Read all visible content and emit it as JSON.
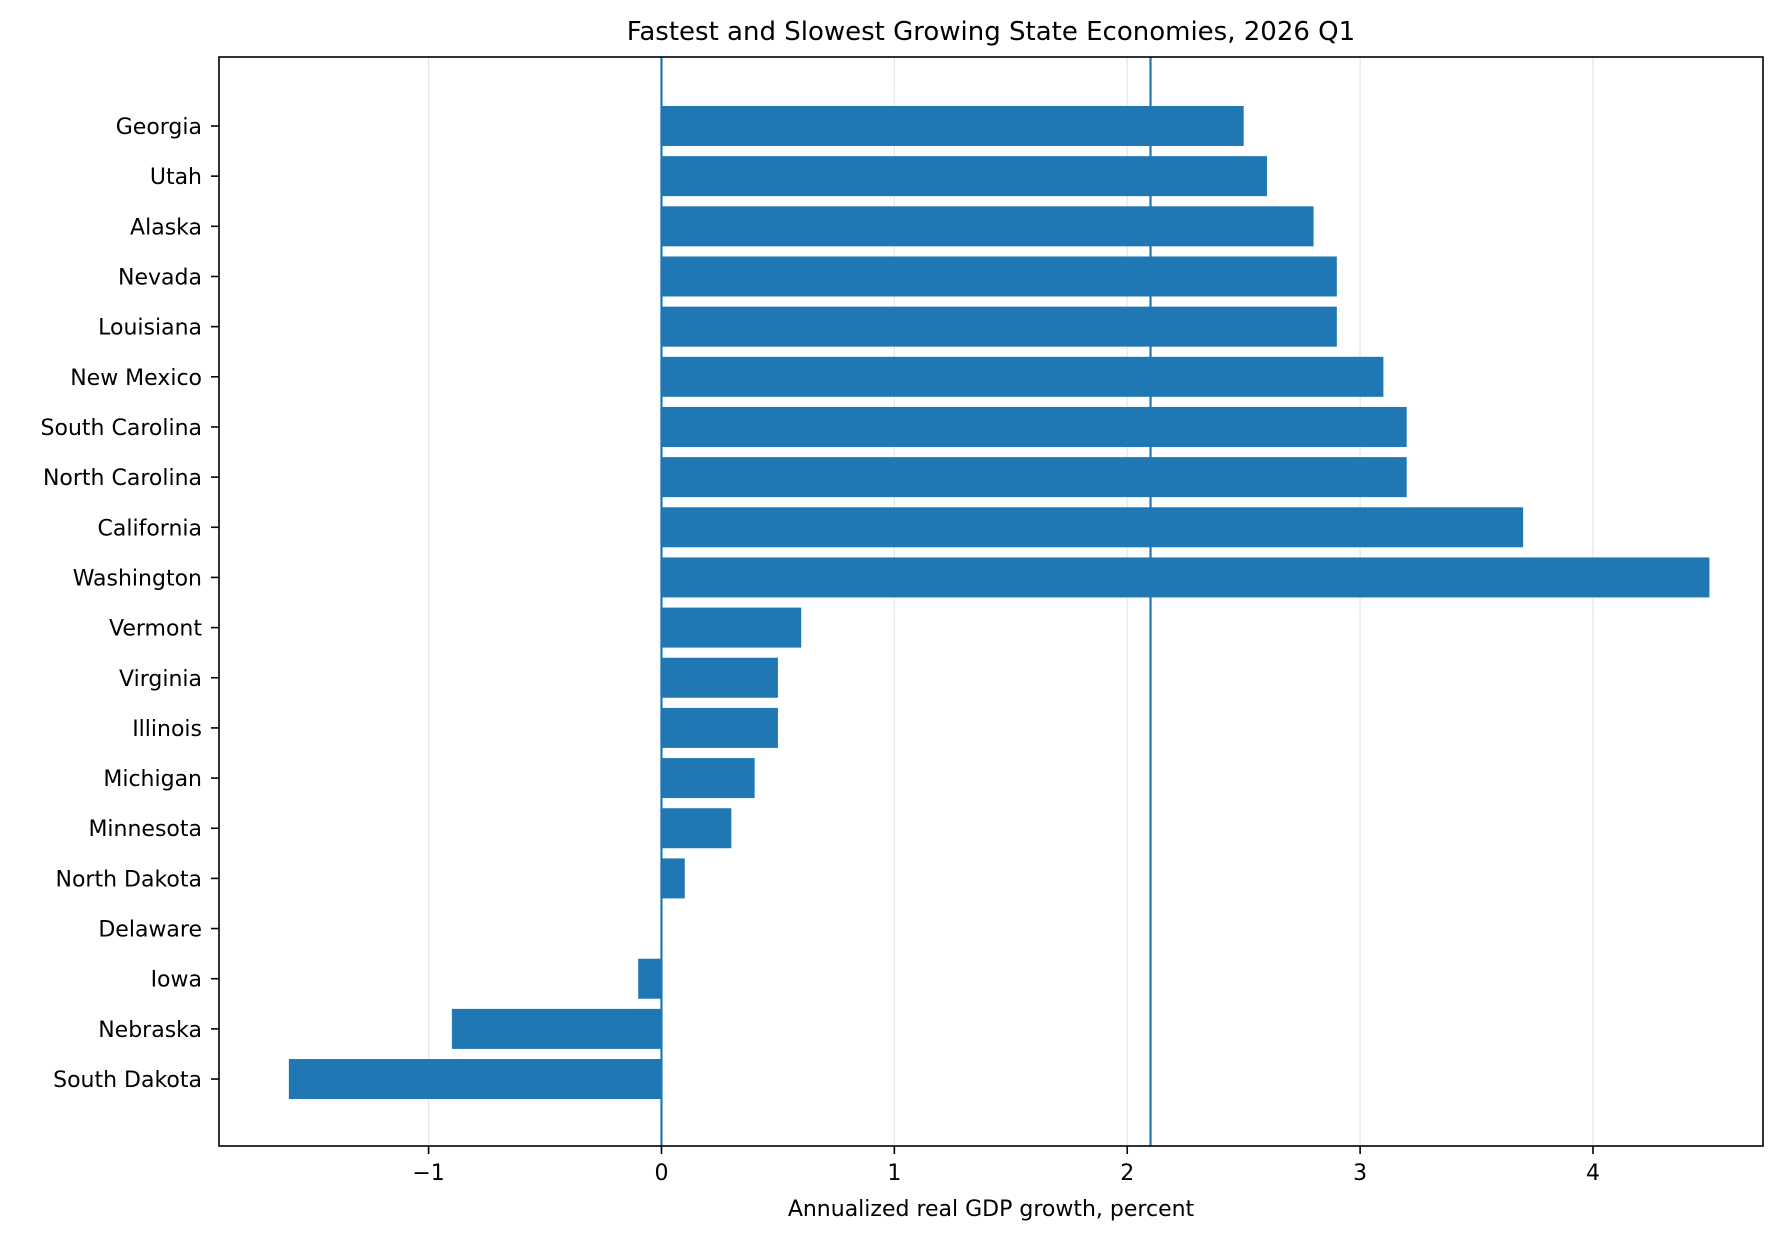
{
  "chart_data": {
    "type": "bar",
    "orientation": "horizontal",
    "title": "Fastest and Slowest Growing State Economies, 2026 Q1",
    "xlabel": "Annualized real GDP growth, percent",
    "ylabel": "",
    "categories": [
      "Georgia",
      "Utah",
      "Alaska",
      "Nevada",
      "Louisiana",
      "New Mexico",
      "South Carolina",
      "North Carolina",
      "California",
      "Washington",
      "Vermont",
      "Virginia",
      "Illinois",
      "Michigan",
      "Minnesota",
      "North Dakota",
      "Delaware",
      "Iowa",
      "Nebraska",
      "South Dakota"
    ],
    "values": [
      2.5,
      2.6,
      2.8,
      2.9,
      2.9,
      3.1,
      3.2,
      3.2,
      3.7,
      4.5,
      0.6,
      0.5,
      0.5,
      0.4,
      0.3,
      0.1,
      0.0,
      -0.1,
      -0.9,
      -1.6
    ],
    "xlim": [
      -1.9,
      4.73
    ],
    "xticks": [
      -1,
      0,
      1,
      2,
      3,
      4
    ],
    "xtick_labels": [
      "−1",
      "0",
      "1",
      "2",
      "3",
      "4"
    ],
    "reference_lines": [
      0,
      2.1
    ],
    "grid": "vertical, light",
    "legend": "none",
    "bar_color": "#1f77b4",
    "reference_line_color": "#1f77b4",
    "grid_color": "#e6e6e6"
  }
}
